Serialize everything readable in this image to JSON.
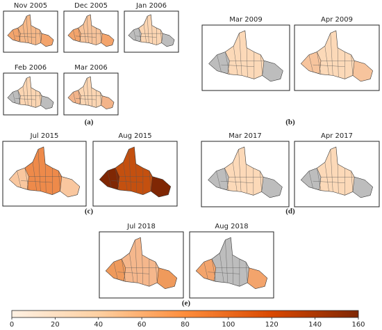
{
  "panels": [
    {
      "label": "(a)",
      "maps": [
        {
          "title": "Nov 2005",
          "fill": "#f6b888",
          "fill2": "#f3a46c"
        },
        {
          "title": "Dec 2005",
          "fill": "#f7c39a",
          "fill2": "#f3a46c"
        },
        {
          "title": "Jan 2006",
          "fill": "#fbd5b2",
          "fill2": "#bdbdbd"
        },
        {
          "title": "Feb 2006",
          "fill": "#fbd5b2",
          "fill2": "#bdbdbd"
        },
        {
          "title": "Mar 2006",
          "fill": "#fbd5b2",
          "fill2": "#f3b48a"
        }
      ]
    },
    {
      "label": "(b)",
      "maps": [
        {
          "title": "Mar 2009",
          "fill": "#fcd9b8",
          "fill2": "#bdbdbd"
        },
        {
          "title": "Apr 2009",
          "fill": "#fcd9b8",
          "fill2": "#f7c49d"
        }
      ]
    },
    {
      "label": "(c)",
      "maps": [
        {
          "title": "Jul 2015",
          "fill": "#ee8a4a",
          "fill2": "#f9c79f"
        },
        {
          "title": "Aug 2015",
          "fill": "#c4500f",
          "fill2": "#7f2704"
        }
      ]
    },
    {
      "label": "(d)",
      "maps": [
        {
          "title": "Mar 2017",
          "fill": "#fcd9b8",
          "fill2": "#bdbdbd"
        },
        {
          "title": "Apr 2017",
          "fill": "#fcd9b8",
          "fill2": "#bdbdbd"
        }
      ]
    },
    {
      "label": "(e)",
      "maps": [
        {
          "title": "Jul 2018",
          "fill": "#f5b78c",
          "fill2": "#ef9a5c"
        },
        {
          "title": "Aug 2018",
          "fill": "#bdbdbd",
          "fill2": "#f3a46c"
        }
      ]
    }
  ],
  "colorbar": {
    "lim": [
      0,
      160
    ],
    "ticks": [
      0,
      20,
      40,
      60,
      80,
      100,
      120,
      140,
      160
    ],
    "colors": [
      "#fff1e3",
      "#fdd0a2",
      "#fd8d3c",
      "#d94801",
      "#7f2704"
    ]
  }
}
